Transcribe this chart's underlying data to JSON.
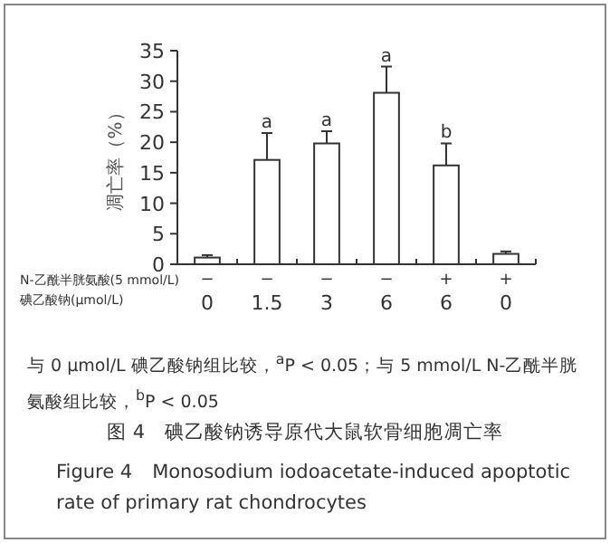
{
  "chart_data": {
    "type": "bar",
    "title": "图 4　碘乙酸钠诱导原代大鼠软骨细胞凋亡率",
    "subtitle": "Figure 4　Monosodium iodoacetate-induced apoptotic rate of primary rat chondrocytes",
    "ylabel": "凋亡率（%）",
    "categories": [
      "−\n0",
      "−\n1.5",
      "−\n3",
      "−\n6",
      "+\n6",
      "+\n0"
    ],
    "values": [
      1.1,
      17.1,
      19.8,
      28.1,
      16.2,
      1.7
    ],
    "errors": [
      0.4,
      4.4,
      2.0,
      4.3,
      3.6,
      0.4
    ],
    "color": "#ffffff",
    "ylim": [
      0,
      35
    ],
    "yticks": [
      0,
      5,
      10,
      15,
      20,
      25,
      30,
      35
    ],
    "annotations": [
      "N-乙酰半胱氨酸(5 mmol/L)",
      "碘乙酸钠(μmol/L)",
      "与 0 μmol/L 碘乙酸钠组比较，$^{a}$P < 0.05；与 5 mmol/L N-乙酰半胱氨酸组比较，$^{b}$P < 0.05",
      {
        "text": "a",
        "x": "−\n1.5",
        "y": 21.5
      },
      {
        "text": "a",
        "x": "−\n3",
        "y": 21.8
      },
      {
        "text": "a",
        "x": "−\n6",
        "y": 32.4
      },
      {
        "text": "b",
        "x": "+\n6",
        "y": 19.8
      }
    ],
    "grid": false
  }
}
